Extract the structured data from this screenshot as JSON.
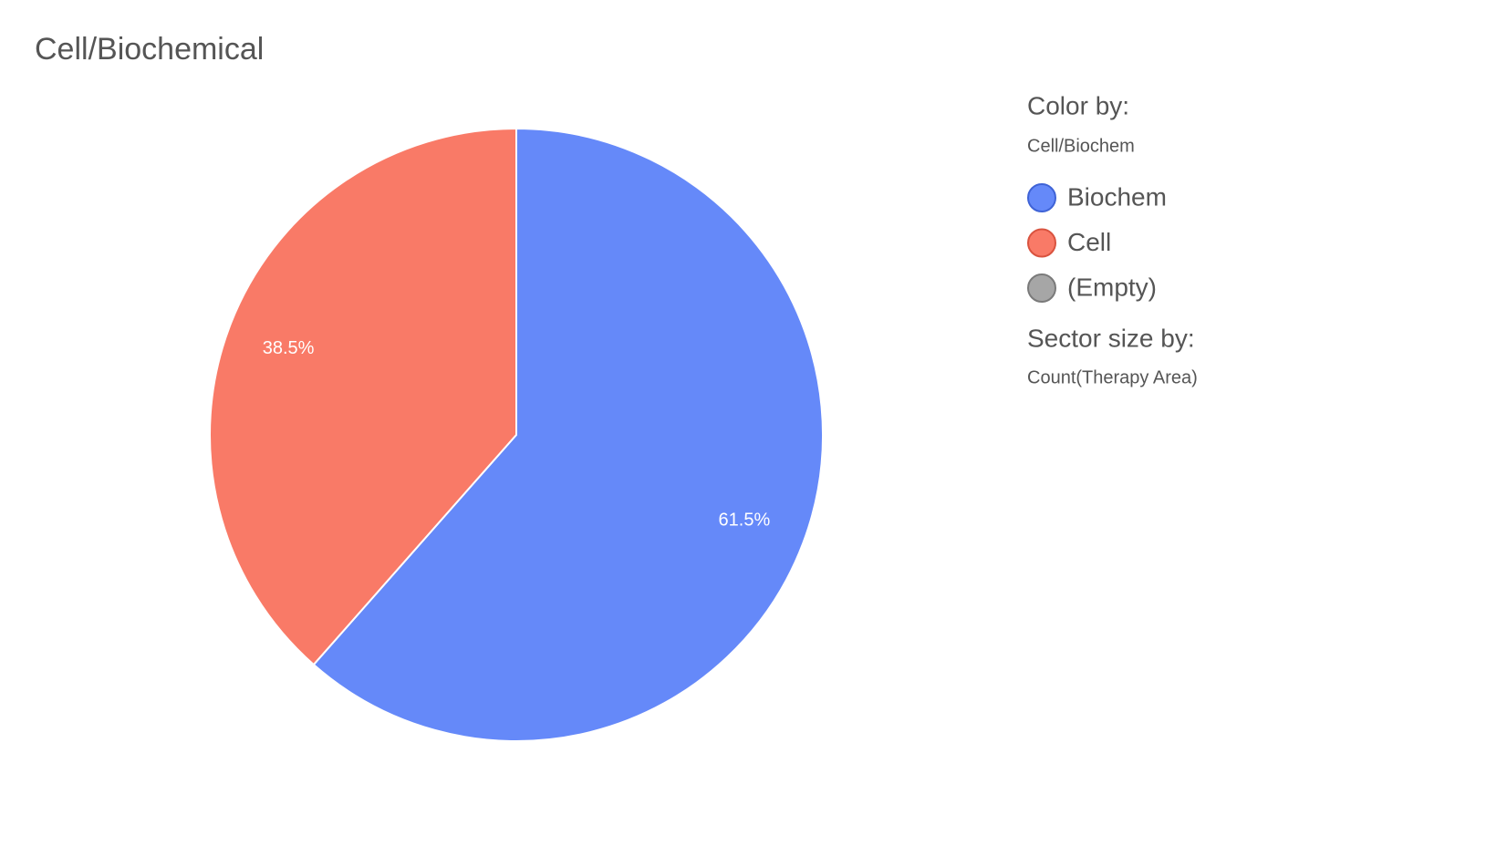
{
  "chart_data": {
    "type": "pie",
    "title": "Cell/Biochemical",
    "legend_title": "Color by:",
    "color_by": "Cell/Biochem",
    "size_title": "Sector size by:",
    "size_by": "Count(Therapy Area)",
    "categories": [
      "Biochem",
      "Cell",
      "(Empty)"
    ],
    "values": [
      61.5,
      38.5,
      null
    ],
    "value_labels": [
      "61.5%",
      "38.5%",
      null
    ],
    "colors": [
      "#6589f9",
      "#f97a67",
      "#a6a6a6"
    ],
    "stroke_colors": [
      "#3f63d6",
      "#d9533f",
      "#7a7a7a"
    ]
  }
}
